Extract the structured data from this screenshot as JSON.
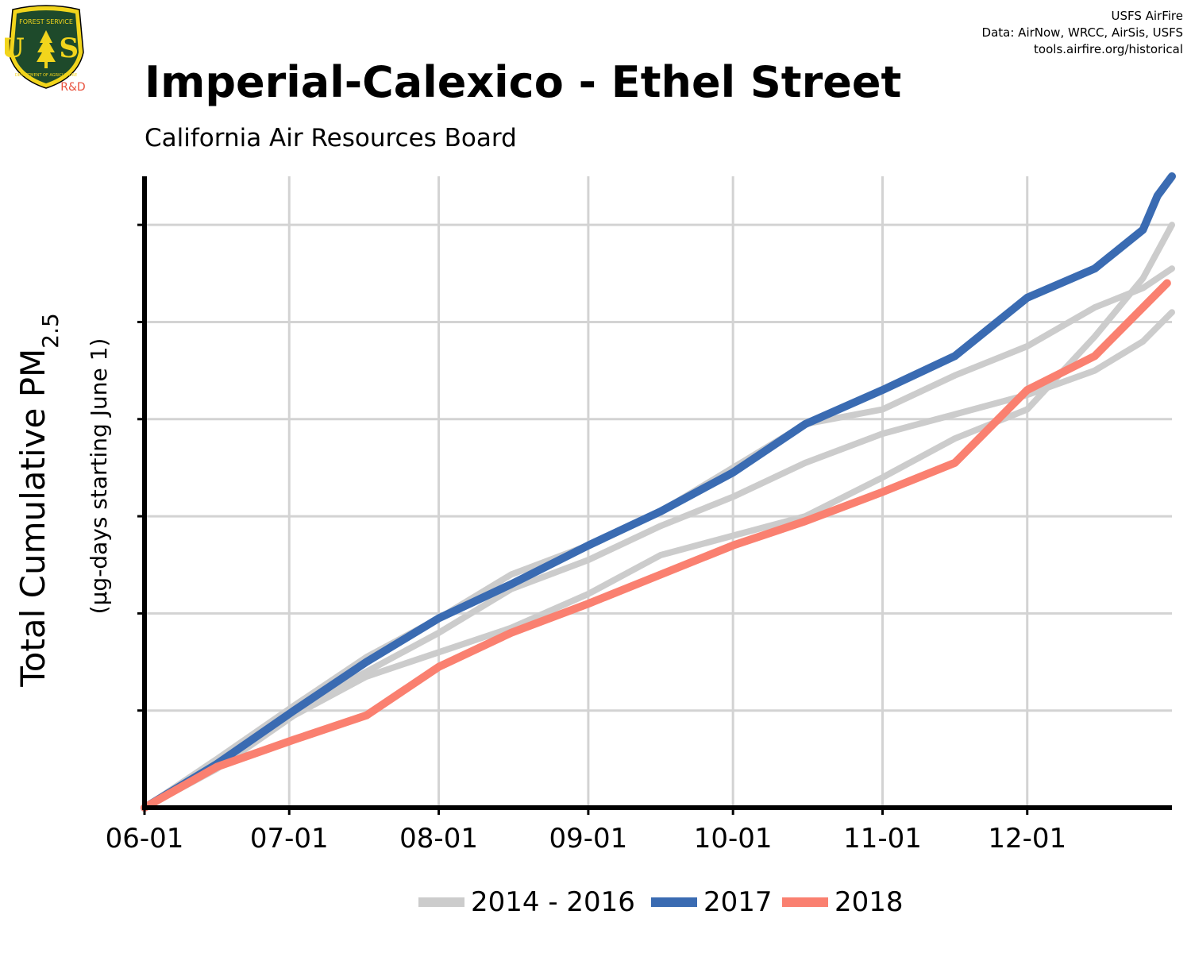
{
  "credits": [
    "USFS AirFire",
    "Data: AirNow, WRCC, AirSis, USFS",
    "tools.airfire.org/historical"
  ],
  "logo": {
    "icon": "usfs-shield-icon",
    "arc_top": "FOREST SERVICE",
    "letters": "U S",
    "arc_bottom": "DEPARTMENT OF AGRICULTURE",
    "tag": "R&D",
    "colors": {
      "shield": "#1e4a2b",
      "rim": "#f2d51c",
      "tag": "#e8513c"
    }
  },
  "chart_data": {
    "type": "line",
    "title": "Imperial-Calexico - Ethel Street",
    "subtitle": "California Air Resources Board",
    "ylabel": "Total Cumulative PM",
    "ylabel_sub": "2.5",
    "ylabel2": "(µg-days starting June 1)",
    "x_ticks": [
      "06-01",
      "07-01",
      "08-01",
      "09-01",
      "10-01",
      "11-01",
      "12-01"
    ],
    "x_tick_days": [
      0,
      30,
      61,
      92,
      122,
      153,
      183
    ],
    "xlim": [
      0,
      213
    ],
    "ylim": [
      0,
      6.5
    ],
    "y_grid": [
      1,
      2,
      3,
      4,
      5,
      6
    ],
    "y_tick_labels": [],
    "grid": true,
    "legend_position": "bottom",
    "series": [
      {
        "name": "",
        "group": "2014 - 2016",
        "color": "#cccccc",
        "x": [
          0,
          15,
          31,
          46,
          61,
          76,
          92,
          107,
          122,
          137,
          153,
          168,
          183,
          197,
          207,
          213
        ],
        "y": [
          0,
          0.5,
          1.05,
          1.55,
          1.95,
          2.4,
          2.7,
          3.05,
          3.5,
          3.95,
          4.1,
          4.45,
          4.75,
          5.15,
          5.35,
          5.55
        ]
      },
      {
        "name": "",
        "group": "2014 - 2016",
        "color": "#cccccc",
        "x": [
          0,
          15,
          31,
          46,
          61,
          76,
          92,
          107,
          122,
          137,
          153,
          168,
          183,
          197,
          207,
          213
        ],
        "y": [
          0,
          0.4,
          0.95,
          1.35,
          1.6,
          1.85,
          2.2,
          2.6,
          2.8,
          3.0,
          3.4,
          3.8,
          4.1,
          4.85,
          5.45,
          6.0
        ]
      },
      {
        "name": "",
        "group": "2014 - 2016",
        "color": "#cccccc",
        "x": [
          0,
          15,
          31,
          46,
          61,
          76,
          92,
          107,
          122,
          137,
          153,
          168,
          183,
          197,
          207,
          213
        ],
        "y": [
          0,
          0.45,
          1.0,
          1.4,
          1.8,
          2.25,
          2.55,
          2.9,
          3.2,
          3.55,
          3.85,
          4.05,
          4.25,
          4.5,
          4.8,
          5.1
        ]
      },
      {
        "name": "2017",
        "color": "#3a6bb2",
        "x": [
          0,
          15,
          31,
          46,
          61,
          76,
          92,
          107,
          122,
          137,
          153,
          168,
          183,
          197,
          207,
          210,
          213
        ],
        "y": [
          0,
          0.45,
          1.0,
          1.5,
          1.95,
          2.3,
          2.7,
          3.05,
          3.45,
          3.95,
          4.3,
          4.65,
          5.25,
          5.55,
          5.95,
          6.3,
          6.5
        ]
      },
      {
        "name": "2018",
        "color": "#fa8070",
        "x": [
          0,
          15,
          31,
          46,
          61,
          76,
          92,
          107,
          122,
          137,
          153,
          168,
          183,
          197,
          207,
          212
        ],
        "y": [
          0,
          0.42,
          0.7,
          0.95,
          1.45,
          1.8,
          2.1,
          2.4,
          2.7,
          2.95,
          3.25,
          3.55,
          4.3,
          4.65,
          5.15,
          5.4
        ]
      }
    ],
    "legend": [
      {
        "label": "2014 - 2016",
        "color": "#cccccc"
      },
      {
        "label": "2017",
        "color": "#3a6bb2"
      },
      {
        "label": "2018",
        "color": "#fa8070"
      }
    ]
  }
}
